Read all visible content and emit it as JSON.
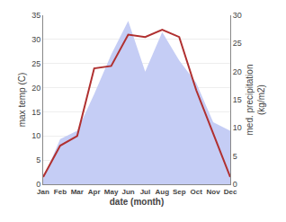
{
  "chart_data": {
    "type": "line",
    "xlabel": "date (month)",
    "ylabel": "max temp (C)",
    "y2label": "med. precipitation\n(kg/m2)",
    "categories": [
      "Jan",
      "Feb",
      "Mar",
      "Apr",
      "May",
      "Jun",
      "Jul",
      "Aug",
      "Sep",
      "Oct",
      "Nov",
      "Dec"
    ],
    "series": [
      {
        "type": "area",
        "axis": "y2",
        "color": "#c5cdf5",
        "values": [
          1.0,
          8.0,
          9.5,
          16.0,
          23.0,
          29.0,
          20.0,
          27.0,
          22.0,
          18.0,
          11.0,
          9.5
        ]
      },
      {
        "type": "line",
        "color": "#b03030",
        "values": [
          1.5,
          8.0,
          10.0,
          24.0,
          24.5,
          31.0,
          30.5,
          32.0,
          30.5,
          19.5,
          10.5,
          1.5
        ]
      }
    ],
    "ylim": [
      0,
      35
    ],
    "yticks": [
      0,
      5,
      10,
      15,
      20,
      25,
      30,
      35
    ],
    "y2lim": [
      0,
      30
    ],
    "y2ticks": [
      0,
      5,
      10,
      15,
      20,
      25,
      30
    ],
    "grid": true
  }
}
